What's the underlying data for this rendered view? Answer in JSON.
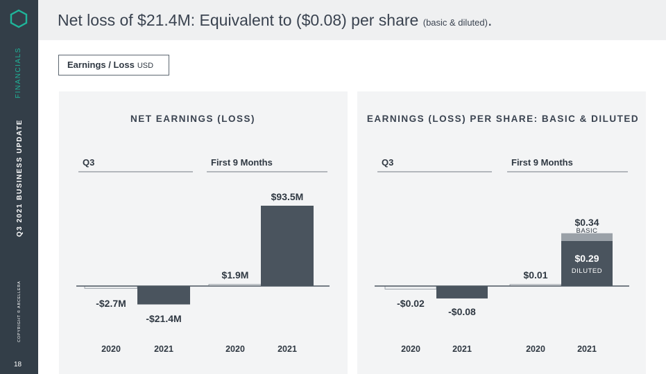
{
  "sidebar": {
    "section": "FINANCIALS",
    "subtitle": "Q3 2021 BUSINESS UPDATE",
    "copyright": "COPYRIGHT © ABCELLERA",
    "page_number": "18"
  },
  "header": {
    "title_main": "Net loss of $21.4M: Equivalent to ($0.08) per share ",
    "title_note": "(basic & diluted)",
    "title_end": "."
  },
  "tag": {
    "label": "Earnings / Loss",
    "unit": "USD"
  },
  "colors": {
    "sidebar": "#333e48",
    "accent": "#1fb59a",
    "bar": "#4a545e",
    "bar_2020": "#eceef0",
    "basic_cap": "#9aa1a8",
    "text": "#2f3842"
  },
  "chart_data": [
    {
      "type": "bar",
      "title": "NET EARNINGS (LOSS)",
      "groups": [
        {
          "label": "Q3",
          "categories": [
            "2020",
            "2021"
          ],
          "values": [
            -2.7,
            -21.4
          ],
          "labels": [
            "-$2.7M",
            "-$21.4M"
          ]
        },
        {
          "label": "First 9 Months",
          "categories": [
            "2020",
            "2021"
          ],
          "values": [
            1.9,
            93.5
          ],
          "labels": [
            "$1.9M",
            "$93.5M"
          ]
        }
      ],
      "unit": "USD millions"
    },
    {
      "type": "bar",
      "title": "EARNINGS (LOSS) PER SHARE: BASIC & DILUTED",
      "groups": [
        {
          "label": "Q3",
          "categories": [
            "2020",
            "2021"
          ],
          "values": [
            -0.02,
            -0.08
          ],
          "labels": [
            "-$0.02",
            "-$0.08"
          ]
        },
        {
          "label": "First 9 Months",
          "categories": [
            "2020",
            "2021"
          ],
          "values": [
            0.01,
            0.29
          ],
          "labels": [
            "$0.01",
            "$0.29"
          ],
          "basic_2021": {
            "value": 0.34,
            "label": "$0.34",
            "tag": "BASIC"
          },
          "diluted_tag": "DILUTED"
        }
      ],
      "unit": "USD per share"
    }
  ]
}
